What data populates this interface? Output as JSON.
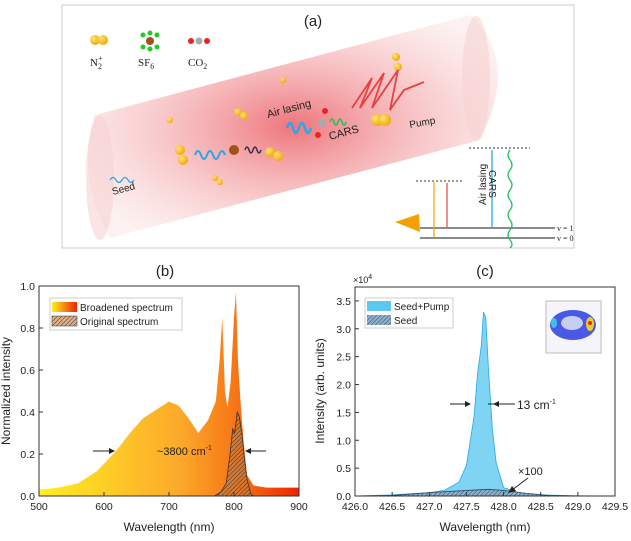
{
  "panel_a": {
    "label": "(a)",
    "legend": [
      {
        "name": "N2+",
        "text": "N",
        "sub": "2",
        "sup": "+"
      },
      {
        "name": "SF6",
        "text": "SF",
        "sub": "6",
        "sup": ""
      },
      {
        "name": "CO2",
        "text": "CO",
        "sub": "2",
        "sup": ""
      }
    ],
    "labels": {
      "seed": "Seed",
      "air_lasing": "Air lasing",
      "cars": "CARS",
      "pump": "Pump",
      "level_air_lasing": "Air lasing",
      "level_cars": "CARS",
      "v1": "v = 1",
      "v0": "v = 0"
    },
    "colors": {
      "beam": "#e8474f",
      "molecule_n2": "#f4b400",
      "seed_wave": "#2aa7e8",
      "cars_wave": "#1fc15a",
      "pump_wave": "#e84040"
    }
  },
  "chart_data": [
    {
      "panel_label": "(b)",
      "type": "area",
      "xlabel": "Wavelength (nm)",
      "ylabel": "Normalized intensity",
      "xlim": [
        500,
        900
      ],
      "ylim": [
        0,
        1.0
      ],
      "xticks": [
        "500",
        "600",
        "700",
        "800",
        "900"
      ],
      "yticks": [
        "0.0",
        "0.2",
        "0.4",
        "0.6",
        "0.8",
        "1.0"
      ],
      "legend_position": "top-left",
      "annotation": "~3800 cm",
      "annotation_sup": "-1",
      "series": [
        {
          "name": "Broadened spectrum",
          "color_start": "#ffee22",
          "color_end": "#ee2200",
          "x": [
            500,
            530,
            560,
            590,
            620,
            640,
            660,
            680,
            700,
            715,
            730,
            745,
            760,
            772,
            778,
            782,
            786,
            790,
            795,
            800,
            803,
            806,
            810,
            815,
            820,
            830,
            850,
            880,
            900
          ],
          "y": [
            0.03,
            0.04,
            0.06,
            0.12,
            0.22,
            0.3,
            0.37,
            0.41,
            0.45,
            0.43,
            0.37,
            0.3,
            0.36,
            0.45,
            0.65,
            0.85,
            0.5,
            0.42,
            0.55,
            0.85,
            0.97,
            0.65,
            0.45,
            0.25,
            0.1,
            0.05,
            0.04,
            0.04,
            0.04
          ]
        },
        {
          "name": "Original spectrum",
          "color": "#555555",
          "x": [
            770,
            780,
            788,
            794,
            798,
            801,
            805,
            808,
            812,
            816,
            820,
            826,
            830
          ],
          "y": [
            0,
            0.02,
            0.06,
            0.2,
            0.32,
            0.3,
            0.4,
            0.38,
            0.3,
            0.18,
            0.08,
            0.01,
            0
          ]
        }
      ]
    },
    {
      "panel_label": "(c)",
      "type": "area",
      "xlabel": "Wavelength (nm)",
      "ylabel": "Intensity (arb. units)",
      "y_multiplier": "×10",
      "y_multiplier_sup": "4",
      "xlim": [
        426.0,
        429.5
      ],
      "ylim": [
        0,
        3.75
      ],
      "xticks": [
        "426.0",
        "426.5",
        "427.0",
        "427.5",
        "428.0",
        "428.5",
        "429.0",
        "429.5"
      ],
      "yticks": [
        "0.0",
        "0.5",
        "1.0",
        "1.5",
        "2.0",
        "2.5",
        "3.0",
        "3.5"
      ],
      "legend_position": "top-left",
      "annotation_width": "13 cm",
      "annotation_width_sup": "-1",
      "annotation_scale": "×100",
      "series": [
        {
          "name": "Seed+Pump",
          "color": "#5bc8f0",
          "x": [
            426.0,
            426.5,
            427.0,
            427.2,
            427.4,
            427.5,
            427.6,
            427.65,
            427.7,
            427.73,
            427.76,
            427.8,
            427.85,
            427.9,
            428.0,
            428.2,
            428.5,
            429.0,
            429.5
          ],
          "y": [
            0,
            0.02,
            0.06,
            0.1,
            0.25,
            0.55,
            1.4,
            2.2,
            2.7,
            3.3,
            3.2,
            2.2,
            1.2,
            0.6,
            0.15,
            0.06,
            0.02,
            0.005,
            0
          ]
        },
        {
          "name": "Seed",
          "color": "#3a5a7a",
          "x": [
            426.0,
            426.5,
            427.0,
            427.5,
            427.8,
            428.0,
            428.3,
            428.6,
            429.0,
            429.5
          ],
          "y": [
            0,
            0.01,
            0.06,
            0.1,
            0.12,
            0.1,
            0.05,
            0.01,
            0,
            0
          ]
        }
      ]
    }
  ]
}
